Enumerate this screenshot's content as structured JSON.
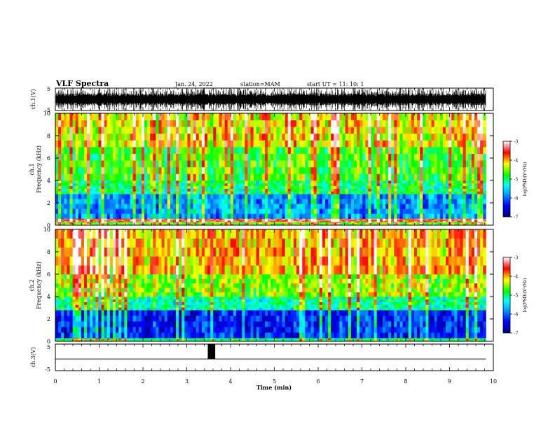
{
  "header": {
    "title": "VLF Spectra",
    "date": "Jan. 24, 2022",
    "station": "station=MAM",
    "start_ut": "start UT =  11: 10: 1"
  },
  "chart_data": [
    {
      "type": "line",
      "id": "ch1-waveform",
      "ylabel": "ch.1(V)",
      "ylim": [
        -5,
        5
      ],
      "ytick_labels": [
        "5",
        "-5"
      ],
      "xlim": [
        0,
        10
      ],
      "description_values": {
        "amplitude_min": -5,
        "amplitude_max": 5
      }
    },
    {
      "type": "heatmap",
      "id": "ch1-spectrogram",
      "ylabel": "ch.1\nFrequency (kHz)",
      "ylabel_line1": "ch.1",
      "ylabel_line2": "Frequency (kHz)",
      "ylim": [
        0,
        10
      ],
      "yticks": [
        0,
        2,
        4,
        6,
        8,
        10
      ],
      "xlim": [
        0,
        10
      ],
      "data_end_min": 9.83,
      "colorbar": {
        "label": "log(PSD)(V²/Hz)",
        "range": [
          -7,
          -3
        ],
        "ticks": [
          -7,
          -6,
          -5,
          -4,
          -3
        ]
      },
      "bands": [
        {
          "f_low": 0.0,
          "f_high": 0.3,
          "log_psd": -4.6
        },
        {
          "f_low": 0.3,
          "f_high": 0.6,
          "log_psd": -3.5
        },
        {
          "f_low": 0.6,
          "f_high": 2.8,
          "log_psd": -5.8
        },
        {
          "f_low": 2.8,
          "f_high": 4.0,
          "log_psd": -5.0
        },
        {
          "f_low": 4.0,
          "f_high": 7.0,
          "log_psd": -4.7
        },
        {
          "f_low": 7.0,
          "f_high": 10.0,
          "log_psd": -4.2
        }
      ]
    },
    {
      "type": "heatmap",
      "id": "ch2-spectrogram",
      "ylabel_line1": "ch.2",
      "ylabel_line2": "Frequency (kHz)",
      "ylim": [
        0,
        10
      ],
      "yticks": [
        0,
        2,
        4,
        6,
        8,
        10
      ],
      "xlim": [
        0,
        10
      ],
      "data_end_min": 9.83,
      "colorbar": {
        "label": "log(PSD)(V²/Hz)",
        "range": [
          -7,
          -3
        ],
        "ticks": [
          -7,
          -6,
          -5,
          -4,
          -3
        ]
      },
      "bands": [
        {
          "f_low": 0.0,
          "f_high": 0.3,
          "log_psd": -5.0
        },
        {
          "f_low": 0.3,
          "f_high": 2.8,
          "log_psd": -6.3
        },
        {
          "f_low": 2.8,
          "f_high": 4.0,
          "log_psd": -5.1
        },
        {
          "f_low": 4.0,
          "f_high": 6.0,
          "log_psd": -4.5
        },
        {
          "f_low": 6.0,
          "f_high": 10.0,
          "log_psd": -4.0
        }
      ]
    },
    {
      "type": "line",
      "id": "ch3-waveform",
      "ylabel": "ch.3(V)",
      "ylim": [
        -5,
        5
      ],
      "ytick_labels": [
        "5",
        "-5"
      ],
      "xlim": [
        0,
        10
      ],
      "xlabel": "Time (min)",
      "xticks": [
        0,
        1,
        2,
        3,
        4,
        5,
        6,
        7,
        8,
        9,
        10
      ],
      "baseline_v": -0.6,
      "pulse": {
        "t_start_min": 3.48,
        "t_end_min": 3.65,
        "v_high": 5,
        "v_low": -0.6
      }
    }
  ]
}
